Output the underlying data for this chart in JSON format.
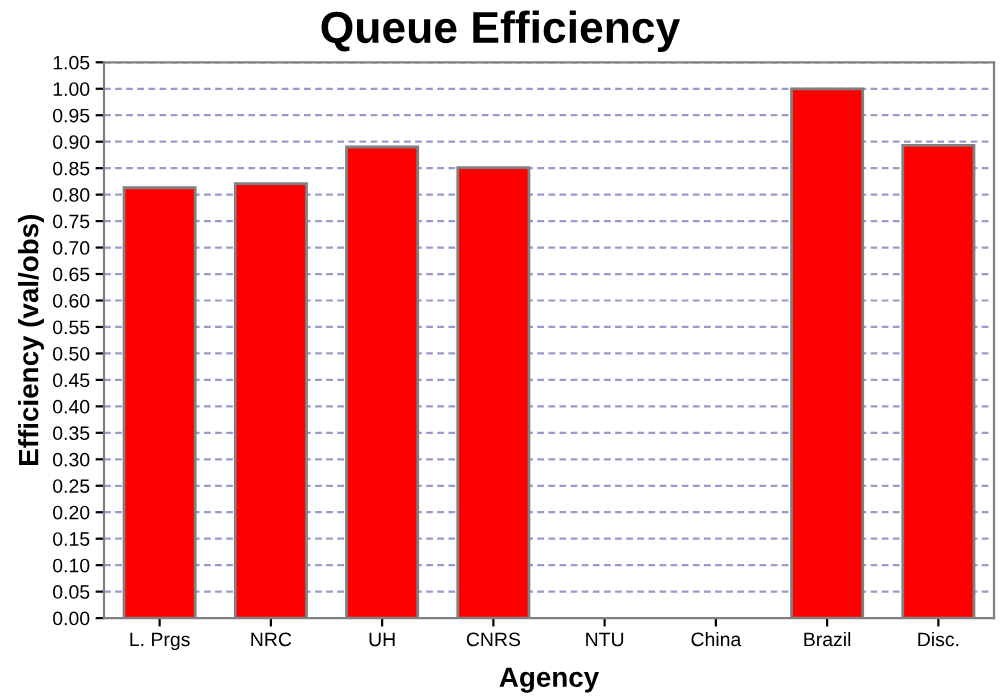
{
  "chart_data": {
    "type": "bar",
    "title": "Queue Efficiency",
    "xlabel": "Agency",
    "ylabel": "Efficiency (val/obs)",
    "categories": [
      "L. Prgs",
      "NRC",
      "UH",
      "CNRS",
      "NTU",
      "China",
      "Brazil",
      "Disc."
    ],
    "values": [
      0.813,
      0.821,
      0.89,
      0.851,
      null,
      null,
      1.0,
      0.893
    ],
    "color": "#ff0000",
    "ylim": [
      0,
      1.05
    ],
    "yticks": [
      {
        "value": 0,
        "label": "0.00"
      },
      {
        "value": 0.05,
        "label": "0.05"
      },
      {
        "value": 0.1,
        "label": "0.10"
      },
      {
        "value": 0.15,
        "label": "0.15"
      },
      {
        "value": 0.2,
        "label": "0.20"
      },
      {
        "value": 0.25,
        "label": "0.25"
      },
      {
        "value": 0.3,
        "label": "0.30"
      },
      {
        "value": 0.35,
        "label": "0.35"
      },
      {
        "value": 0.4,
        "label": "0.40"
      },
      {
        "value": 0.45,
        "label": "0.45"
      },
      {
        "value": 0.5,
        "label": "0.50"
      },
      {
        "value": 0.55,
        "label": "0.55"
      },
      {
        "value": 0.6,
        "label": "0.60"
      },
      {
        "value": 0.65,
        "label": "0.65"
      },
      {
        "value": 0.7,
        "label": "0.70"
      },
      {
        "value": 0.75,
        "label": "0.75"
      },
      {
        "value": 0.8,
        "label": "0.80"
      },
      {
        "value": 0.85,
        "label": "0.85"
      },
      {
        "value": 0.9,
        "label": "0.90"
      },
      {
        "value": 0.95,
        "label": "0.95"
      },
      {
        "value": 1.0,
        "label": "1.00"
      },
      {
        "value": 1.05,
        "label": "1.05"
      }
    ],
    "grid": "y"
  }
}
